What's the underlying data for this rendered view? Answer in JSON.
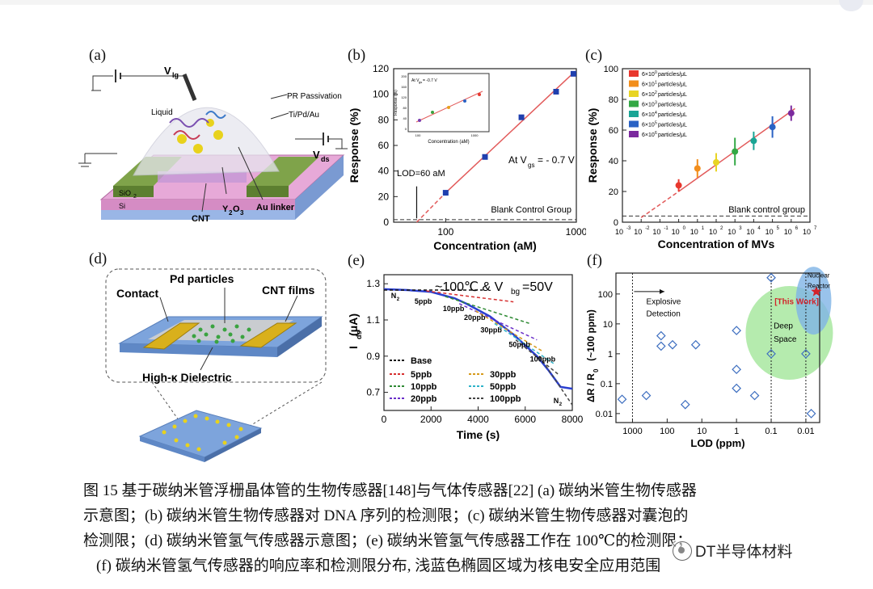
{
  "panels": {
    "a": {
      "label": "(a)",
      "texts": {
        "vlg": "V",
        "vlg_sub": "lg",
        "liquid": "Liquid",
        "pr": "PR Passivation",
        "tipd": "Ti/Pd/Au",
        "vds": "V",
        "vds_sub": "ds",
        "sio2": "SiO",
        "sio2_sub": "2",
        "si": "Si",
        "cnt": "CNT",
        "y2o3": "Y",
        "y2o3_sub1": "2",
        "y2o3_o": "O",
        "y2o3_sub2": "3",
        "aulinker": "Au linker"
      }
    },
    "d": {
      "label": "(d)",
      "texts": {
        "pd": "Pd particles",
        "contact": "Contact",
        "cntfilms": "CNT films",
        "dielectric": "High-κ Dielectric"
      }
    }
  },
  "chart_data": [
    {
      "id": "b",
      "label": "(b)",
      "type": "scatter",
      "xscale": "log",
      "xlim": [
        40,
        1000
      ],
      "ylim": [
        0,
        120
      ],
      "xlabel": "Concentration (aM)",
      "ylabel": "Response (%)",
      "xticks": [
        {
          "v": 100,
          "t": "100"
        },
        {
          "v": 1000,
          "t": "1000"
        }
      ],
      "yticks": [
        0,
        20,
        40,
        60,
        80,
        100,
        120
      ],
      "points": [
        [
          100,
          23
        ],
        [
          200,
          51
        ],
        [
          380,
          82
        ],
        [
          700,
          102
        ],
        [
          950,
          116
        ]
      ],
      "annotations": {
        "lod": "LOD=60 aM",
        "vgs": "At V",
        "vgs_sub": "gs",
        "vgs_rest": "= - 0.7 V",
        "blank": "Blank Control Group"
      },
      "inset": {
        "title": "At V",
        "title_sub": "gs",
        "title_rest": " = -0.7 V",
        "xlabel": "Concentration (aM)",
        "ylabel": "Response (%)",
        "xticks": [
          "100",
          "1000"
        ],
        "yticks": [
          "0",
          "40",
          "80",
          "120",
          "160",
          "200"
        ]
      }
    },
    {
      "id": "c",
      "label": "(c)",
      "type": "scatter",
      "xscale": "log",
      "xlim": [
        -3,
        7
      ],
      "ylim": [
        0,
        100
      ],
      "xlabel": "Concentration of MVs",
      "ylabel": "Response (%)",
      "xticklabels": [
        "10",
        "10",
        "10",
        "10",
        "10",
        "10",
        "10",
        "10",
        "10",
        "10",
        "10"
      ],
      "xtickexp": [
        "-3",
        "-2",
        "-1",
        "0",
        "1",
        "2",
        "3",
        "4",
        "5",
        "6",
        "7"
      ],
      "yticks": [
        0,
        20,
        40,
        60,
        80,
        100
      ],
      "series": [
        {
          "name": "6×10",
          "exp": "0",
          "unit": " particles/μL",
          "color": "#e8372d",
          "x": 0,
          "y": 24,
          "err": 4
        },
        {
          "name": "6×10",
          "exp": "1",
          "unit": " particles/μL",
          "color": "#f28e1c",
          "x": 1,
          "y": 35,
          "err": 6
        },
        {
          "name": "6×10",
          "exp": "2",
          "unit": " particles/μL",
          "color": "#e8d424",
          "x": 2,
          "y": 39,
          "err": 6
        },
        {
          "name": "6×10",
          "exp": "3",
          "unit": " particles/μL",
          "color": "#34a845",
          "x": 3,
          "y": 46,
          "err": 9
        },
        {
          "name": "6×10",
          "exp": "4",
          "unit": " particles/μL",
          "color": "#1aa595",
          "x": 4,
          "y": 53,
          "err": 6
        },
        {
          "name": "6×10",
          "exp": "5",
          "unit": " particles/μL",
          "color": "#2a62c4",
          "x": 5,
          "y": 62,
          "err": 7
        },
        {
          "name": "6×10",
          "exp": "6",
          "unit": " particles/μL",
          "color": "#7b2a9e",
          "x": 6,
          "y": 71,
          "err": 5
        }
      ],
      "annotations": {
        "blank": "Blank control group"
      }
    },
    {
      "id": "e",
      "label": "(e)",
      "type": "line",
      "xlim": [
        0,
        8000
      ],
      "ylim": [
        0.6,
        1.35
      ],
      "xlabel": "Time (s)",
      "ylabel": "I",
      "ylabel_sub": "ds",
      "ylabel_rest": " (μA)",
      "xticks": [
        0,
        2000,
        4000,
        6000,
        8000
      ],
      "yticks": [
        0.7,
        0.9,
        1.1,
        1.3
      ],
      "title": "~100℃ & V",
      "title_sub": "bg",
      "title_rest": "=50V",
      "steps": [
        "N",
        "5ppb",
        "10ppb",
        "20ppb",
        "30ppb",
        "50ppb",
        "100ppb",
        "N"
      ],
      "n2_sub": "2",
      "legend": [
        {
          "name": "Base",
          "color": "#111111"
        },
        {
          "name": "30ppb",
          "color": "#d69a1c"
        },
        {
          "name": "5ppb",
          "color": "#d62f2f"
        },
        {
          "name": "50ppb",
          "color": "#2fb3c9"
        },
        {
          "name": "10ppb",
          "color": "#2f8a34"
        },
        {
          "name": "100ppb",
          "color": "#444444"
        },
        {
          "name": "20ppb",
          "color": "#6b2fc9"
        }
      ]
    },
    {
      "id": "f",
      "label": "(f)",
      "type": "scatter",
      "xscale": "log-reversed",
      "xlim": [
        3000,
        0.004
      ],
      "ylim": [
        0.005,
        500
      ],
      "xlabel": "LOD (ppm)",
      "ylabel": "ΔR / R",
      "ylabel_sub": "0",
      "ylabel_rest": " (~100 ppm)",
      "xticks": [
        "1000",
        "100",
        "10",
        "1",
        "0.1",
        "0.01"
      ],
      "yticks": [
        "0.01",
        "0.1",
        "1",
        "10",
        "100"
      ],
      "points": [
        [
          2000,
          0.03
        ],
        [
          400,
          0.04
        ],
        [
          150,
          4
        ],
        [
          150,
          1.8
        ],
        [
          70,
          2
        ],
        [
          30,
          0.02
        ],
        [
          15,
          2
        ],
        [
          1,
          6
        ],
        [
          1,
          0.3
        ],
        [
          1,
          0.07
        ],
        [
          0.3,
          0.04
        ],
        [
          0.1,
          350
        ],
        [
          0.1,
          1
        ],
        [
          0.01,
          1
        ],
        [
          0.007,
          0.01
        ]
      ],
      "star": [
        0.005,
        120
      ],
      "annotations": {
        "explosive": "Explosive",
        "detection": "Detection",
        "thiswork": "[This Work]",
        "deep": "Deep",
        "space": "Space",
        "nuclear": "Nuclear",
        "reactor": "Reactor"
      }
    }
  ],
  "caption": {
    "line1": "图 15 基于碳纳米管浮栅晶体管的生物传感器[148]与气体传感器[22] (a) 碳纳米管生物传感器",
    "line2": "示意图；(b) 碳纳米管生物传感器对 DNA 序列的检测限；(c) 碳纳米管生物传感器对囊泡的",
    "line3": "检测限；(d) 碳纳米管氢气传感器示意图；(e) 碳纳米管氢气传感器工作在 100℃的检测限；",
    "line4": "(f) 碳纳米管氢气传感器的响应率和检测限分布, 浅蓝色椭圆区域为核电安全应用范围"
  },
  "watermark": "DT半导体材料"
}
